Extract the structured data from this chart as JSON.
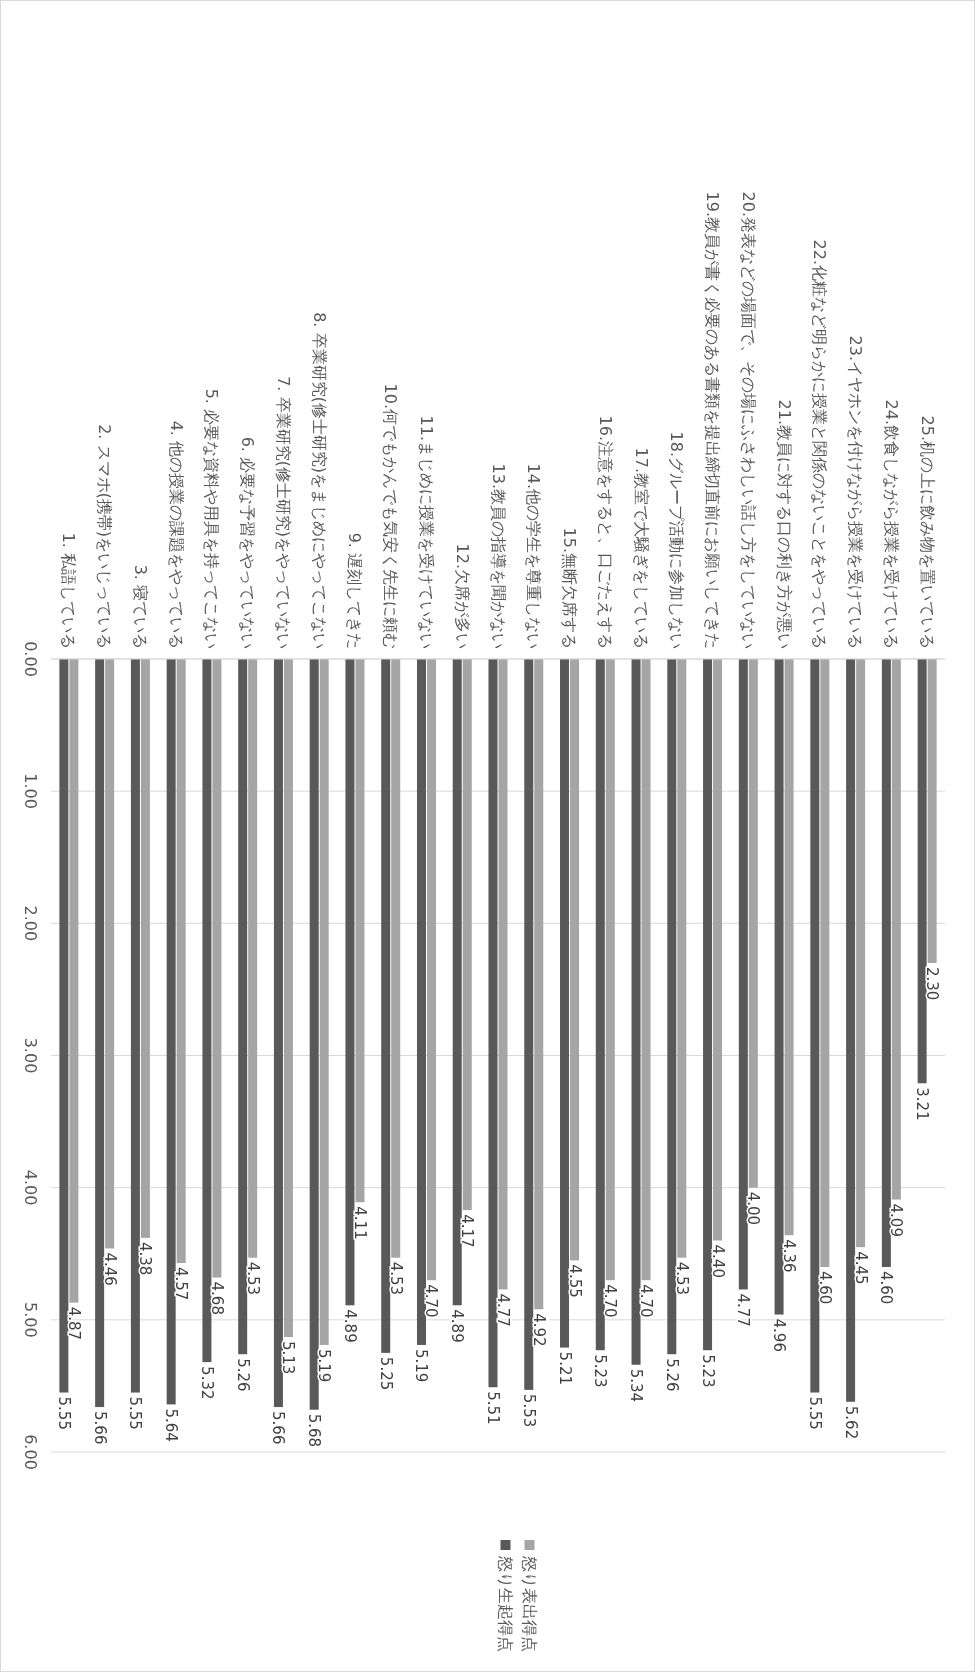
{
  "chart_data": {
    "type": "bar",
    "categories": [
      "1. 私語している",
      "2. スマホ(携帯)をいじっている",
      "3. 寝ている",
      "4. 他の授業の課題をやっている",
      "5. 必要な資料や用具を持ってこない",
      "6. 必要な予習をやっていない",
      "7. 卒業研究(修士研究)をやっていない",
      "8. 卒業研究(修士研究)をまじめにやってこない",
      "9. 遅刻してきた",
      "10.何でもかんでも気安く先生に頼む",
      "11.まじめに授業を受けていない",
      "12.欠席が多い",
      "13.教員の指導を聞かない",
      "14.他の学生を尊重しない",
      "15.無断欠席する",
      "16.注意をすると、口ごたえする",
      "17.教室で大騒ぎをしている",
      "18.グループ活動に参加しない",
      "19.教員が書く必要のある書類を提出締切直前にお願いしてきた",
      "20.発表などの場面で、その場にふさわしい話し方をしていない",
      "21.教員に対する口の利き方が悪い",
      "22.化粧など明らかに授業と関係のないことをやっている",
      "23.イヤホンを付けながら授業を受けている",
      "24.飲食しながら授業を受けている",
      "25.机の上に飲み物を置いている"
    ],
    "series": [
      {
        "name": "怒り表出得点",
        "color": "#a5a5a5",
        "values": [
          4.87,
          4.46,
          4.38,
          4.57,
          4.68,
          4.53,
          5.13,
          5.19,
          4.11,
          4.53,
          4.7,
          4.17,
          4.77,
          4.92,
          4.55,
          4.7,
          4.7,
          4.53,
          4.4,
          4.0,
          4.36,
          4.6,
          4.45,
          4.09,
          2.3
        ],
        "value_labels": [
          "4.87",
          "4.46",
          "4.38",
          "4.57",
          "4.68",
          "4.53",
          "5.13",
          "5.19",
          "4.11",
          "4.53",
          "4.70",
          "4.17",
          "4.77",
          "4.92",
          "4.55",
          "4.70",
          "4.70",
          "4.53",
          "4.40",
          "4.00",
          "4.36",
          "4.60",
          "4.45",
          "4.09",
          "2.30"
        ]
      },
      {
        "name": "怒り生起得点",
        "color": "#595959",
        "values": [
          5.55,
          5.66,
          5.55,
          5.64,
          5.32,
          5.26,
          5.66,
          5.68,
          4.89,
          5.25,
          5.19,
          4.89,
          5.51,
          5.53,
          5.21,
          5.23,
          5.34,
          5.26,
          5.23,
          4.77,
          4.96,
          5.55,
          5.62,
          4.6,
          3.21
        ],
        "value_labels": [
          "5.55",
          "5.66",
          "5.55",
          "5.64",
          "5.32",
          "5.26",
          "5.66",
          "5.68",
          "4.89",
          "5.25",
          "5.19",
          "4.89",
          "5.51",
          "5.53",
          "5.21",
          "5.23",
          "5.34",
          "5.26",
          "5.23",
          "4.77",
          "4.96",
          "5.55",
          "5.62",
          "4.60",
          "3.21"
        ]
      }
    ],
    "ylim": [
      6,
      0
    ],
    "yticks": [
      {
        "value": 0,
        "label": "0.00"
      },
      {
        "value": 1,
        "label": "1.00"
      },
      {
        "value": 2,
        "label": "2.00"
      },
      {
        "value": 3,
        "label": "3.00"
      },
      {
        "value": 4,
        "label": "4.00"
      },
      {
        "value": 5,
        "label": "5.00"
      },
      {
        "value": 6,
        "label": "6.00"
      }
    ],
    "grid": "y",
    "legend": "bottom"
  }
}
